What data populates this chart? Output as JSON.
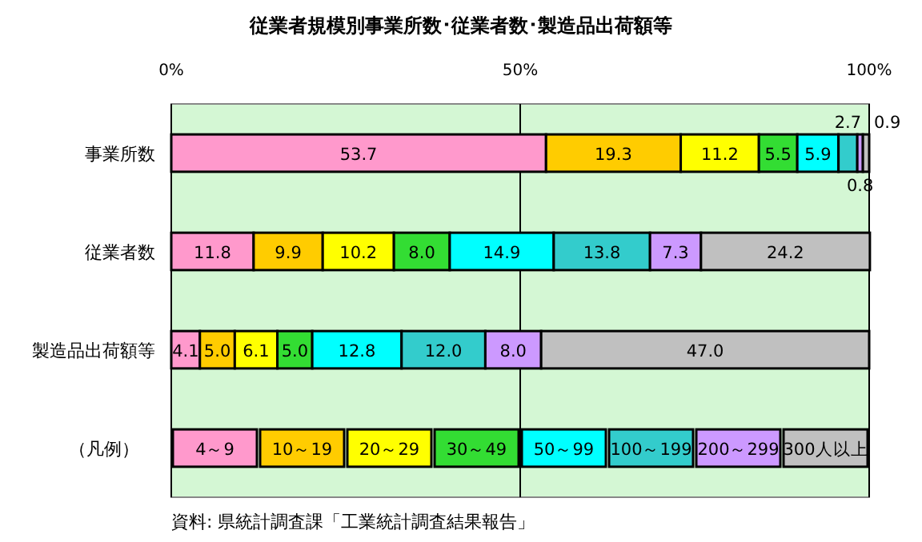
{
  "chart_data": {
    "type": "bar",
    "orientation": "horizontal",
    "stacked": true,
    "title": "従業者規模別事業所数･従業者数･製造品出荷額等",
    "categories": [
      "事業所数",
      "従業者数",
      "製造品出荷額等"
    ],
    "xlim": [
      0,
      100
    ],
    "xticks": [
      {
        "value": 0,
        "label": "0%"
      },
      {
        "value": 50,
        "label": "50%"
      },
      {
        "value": 100,
        "label": "100%"
      }
    ],
    "grid": "x",
    "legend": "bottom",
    "legend_title": "（凡例）",
    "data_labels": true,
    "series": [
      {
        "name": "4～9",
        "color": "#ff99cc",
        "values": [
          53.7,
          11.8,
          4.1
        ],
        "value_labels": [
          "53.7",
          "11.8",
          "4.1"
        ]
      },
      {
        "name": "10～19",
        "color": "#ffcc00",
        "values": [
          19.3,
          9.9,
          5.0
        ],
        "value_labels": [
          "19.3",
          "9.9",
          "5.0"
        ]
      },
      {
        "name": "20～29",
        "color": "#ffff00",
        "values": [
          11.2,
          10.2,
          6.1
        ],
        "value_labels": [
          "11.2",
          "10.2",
          "6.1"
        ]
      },
      {
        "name": "30～49",
        "color": "#33dd33",
        "values": [
          5.5,
          8.0,
          5.0
        ],
        "value_labels": [
          "5.5",
          "8.0",
          "5.0"
        ]
      },
      {
        "name": "50～99",
        "color": "#00ffff",
        "values": [
          5.9,
          14.9,
          12.8
        ],
        "value_labels": [
          "5.9",
          "14.9",
          "12.8"
        ]
      },
      {
        "name": "100～199",
        "color": "#33cccc",
        "values": [
          2.7,
          13.8,
          12.0
        ],
        "value_labels": [
          "2.7",
          "13.8",
          "12.0"
        ]
      },
      {
        "name": "200～299",
        "color": "#cc99ff",
        "values": [
          0.8,
          7.3,
          8.0
        ],
        "value_labels": [
          "0.8",
          "7.3",
          "8.0"
        ]
      },
      {
        "name": "300人以上",
        "color": "#c0c0c0",
        "values": [
          0.9,
          24.2,
          47.0
        ],
        "value_labels": [
          "0.9",
          "24.2",
          "47.0"
        ]
      }
    ],
    "annotations": [
      "資料: 県統計調査課「工業統計調査結果報告」"
    ]
  }
}
